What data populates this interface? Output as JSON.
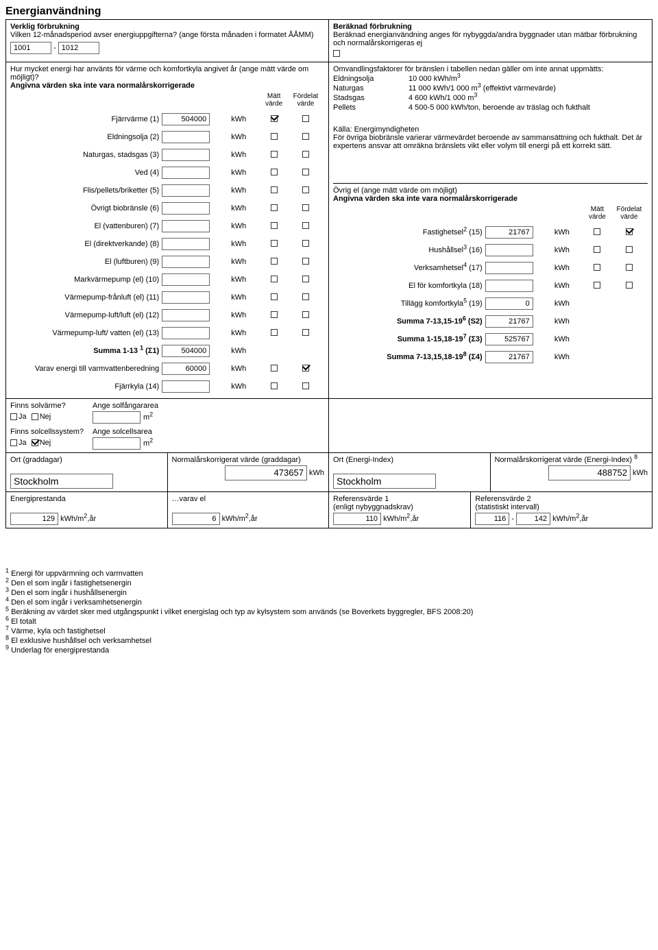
{
  "title": "Energianvändning",
  "top_left": {
    "heading": "Verklig förbrukning",
    "question": "Vilken 12-månadsperiod avser energiuppgifterna? (ange första månaden i formatet ÅÅMM)",
    "period_from": "1001",
    "period_sep": "-",
    "period_to": "1012"
  },
  "top_right": {
    "heading": "Beräknad förbrukning",
    "text": "Beräknad energianvändning anges för nybyggda/andra byggnader utan mätbar förbrukning och normalårskorrigeras ej"
  },
  "usage_q": "Hur mycket energi har använts för värme och komfortkyla angivet år (ange mätt värde om möjligt)?",
  "usage_note": "Angivna värden ska inte vara normalårskorrigerade",
  "col_matt": "Mätt värde",
  "col_fordelat": "Fördelat värde",
  "col_matt_short": "Mätt",
  "col_varde": "värde",
  "col_fordelat_short": "Fördelat",
  "rows_left": [
    {
      "label": "Fjärrvärme (1)",
      "value": "504000",
      "unit": "kWh",
      "matt": true,
      "ford": false
    },
    {
      "label": "Eldningsolja (2)",
      "value": "",
      "unit": "kWh",
      "matt": false,
      "ford": false
    },
    {
      "label": "Naturgas, stadsgas (3)",
      "value": "",
      "unit": "kWh",
      "matt": false,
      "ford": false
    },
    {
      "label": "Ved (4)",
      "value": "",
      "unit": "kWh",
      "matt": false,
      "ford": false
    },
    {
      "label": "Flis/pellets/briketter (5)",
      "value": "",
      "unit": "kWh",
      "matt": false,
      "ford": false
    },
    {
      "label": "Övrigt biobränsle (6)",
      "value": "",
      "unit": "kWh",
      "matt": false,
      "ford": false
    },
    {
      "label": "El (vattenburen) (7)",
      "value": "",
      "unit": "kWh",
      "matt": false,
      "ford": false
    },
    {
      "label": "El (direktverkande) (8)",
      "value": "",
      "unit": "kWh",
      "matt": false,
      "ford": false
    },
    {
      "label": "El (luftburen) (9)",
      "value": "",
      "unit": "kWh",
      "matt": false,
      "ford": false
    },
    {
      "label": "Markvärmepump (el) (10)",
      "value": "",
      "unit": "kWh",
      "matt": false,
      "ford": false
    },
    {
      "label": "Värmepump-frånluft (el) (11)",
      "value": "",
      "unit": "kWh",
      "matt": false,
      "ford": false
    },
    {
      "label": "Värmepump-luft/luft (el) (12)",
      "value": "",
      "unit": "kWh",
      "matt": false,
      "ford": false
    },
    {
      "label": "Värmepump-luft/ vatten (el) (13)",
      "value": "",
      "unit": "kWh",
      "matt": false,
      "ford": false
    }
  ],
  "summa1_label": "Summa 1-13 ",
  "summa1_sup": "1",
  "summa1_sigma": " (Σ1)",
  "summa1_value": "504000",
  "summa1_unit": "kWh",
  "varav_label": "Varav energi till varmvattenberedning",
  "varav_value": "60000",
  "varav_unit": "kWh",
  "varav_matt": false,
  "varav_ford": true,
  "fjarrkyla_label": "Fjärrkyla (14)",
  "fjarrkyla_value": "",
  "fjarrkyla_unit": "kWh",
  "conv_title": "Omvandlingsfaktorer för bränslen i tabellen nedan gäller om inte annat uppmätts:",
  "conv": [
    {
      "k": "Eldningsolja",
      "v": "10 000 kWh/m",
      "sup": "3"
    },
    {
      "k": "Naturgas",
      "v": "11 000 kWh/1 000 m",
      "sup": "3",
      "tail": " (effektivt värmevärde)"
    },
    {
      "k": "Stadsgas",
      "v": "4 600 kWh/1 000 m",
      "sup": "3"
    },
    {
      "k": "Pellets",
      "v": "4 500-5 000 kWh/ton, beroende av träslag och fukthalt"
    }
  ],
  "kalla": "Källa: Energimyndigheten",
  "kalla_text": "För övriga biobränsle varierar värmevärdet beroende av sammansättning och fukthalt. Det är expertens ansvar att omräkna bränslets vikt eller volym till energi på ett korrekt sätt.",
  "ovrig_title": "Övrig el (ange mätt värde om möjligt)",
  "ovrig_note": "Angivna värden ska inte vara normalårskorrigerade",
  "rows_right": [
    {
      "label": "Fastighetsel",
      "sup": "2",
      "tail": " (15)",
      "value": "21767",
      "unit": "kWh",
      "matt": false,
      "ford": true
    },
    {
      "label": "Hushållsel",
      "sup": "3",
      "tail": " (16)",
      "value": "",
      "unit": "kWh",
      "matt": false,
      "ford": false
    },
    {
      "label": "Verksamhetsel",
      "sup": "4",
      "tail": " (17)",
      "value": "",
      "unit": "kWh",
      "matt": false,
      "ford": false
    },
    {
      "label": "El för komfortkyla (18)",
      "value": "",
      "unit": "kWh",
      "matt": false,
      "ford": false
    }
  ],
  "tillagg_label": "Tillägg komfortkyla",
  "tillagg_sup": "5",
  "tillagg_tail": " (19)",
  "tillagg_value": "0",
  "tillagg_unit": "kWh",
  "s2_label": "Summa 7-13,15-19",
  "s2_sup": "6",
  "s2_tail": " (S2)",
  "s2_value": "21767",
  "s2_unit": "kWh",
  "s3_label": "Summa 1-15,18-19",
  "s3_sup": "7",
  "s3_tail": " (Σ3)",
  "s3_value": "525767",
  "s3_unit": "kWh",
  "s4_label": "Summa 7-13,15,18-19",
  "s4_sup": "8",
  "s4_tail": " (Σ4)",
  "s4_value": "21767",
  "s4_unit": "kWh",
  "solv_q": "Finns solvärme?",
  "solv_area_label": "Ange solfångararea",
  "solv_unit": "m",
  "sol_ja": "Ja",
  "sol_nej": "Nej",
  "solv_ja": false,
  "solv_nej": false,
  "solc_q": "Finns solcellssystem?",
  "solc_area_label": "Ange solcellsarea",
  "solc_ja": false,
  "solc_nej": true,
  "ort_grad_label": "Ort (graddagar)",
  "ort_grad_value": "Stockholm",
  "norm_grad_label": "Normalårskorrigerat värde (graddagar)",
  "norm_grad_value": "473657",
  "norm_grad_unit": "kWh",
  "ort_ei_label": "Ort (Energi-Index)",
  "ort_ei_value": "Stockholm",
  "norm_ei_label": "Normalårskorrigerat värde (Energi-Index) ",
  "norm_ei_sup": "8",
  "norm_ei_value": "488752",
  "norm_ei_unit": "kWh",
  "ep_label": "Energiprestanda",
  "ep_value": "129",
  "ep_unit": "kWh/m",
  "ep_sup": "2",
  "ep_tail": ",år",
  "ve_label": "…varav el",
  "ve_value": "6",
  "ve_unit": "kWh/m",
  "ve_sup": "2",
  "ve_tail": ",år",
  "ref1_label": "Referensvärde 1",
  "ref1_sub": "(enligt nybyggnadskrav)",
  "ref1_value": "110",
  "ref1_unit": "kWh/m",
  "ref1_sup": "2",
  "ref1_tail": ",år",
  "ref2_label": "Referensvärde 2",
  "ref2_sub": "(statistiskt intervall)",
  "ref2_from": "116",
  "ref2_sep": "-",
  "ref2_to": "142",
  "ref2_unit": "kWh/m",
  "ref2_sup": "2",
  "ref2_tail": ",år",
  "footnotes": [
    "Energi för uppvärmning och varmvatten",
    "Den el som ingår i fastighetsenergin",
    "Den el som ingår i hushållsenergin",
    "Den el som ingår i verksamhetsenergin",
    "Beräkning av värdet sker med utgångspunkt i vilket energislag och typ av kylsystem som används (se Boverkets byggregler, BFS 2008:20)",
    "El totalt",
    "Värme, kyla och fastighetsel",
    "El exklusive hushållsel och verksamhetsel",
    "Underlag för energiprestanda"
  ],
  "m2": "m",
  "sup2": "2"
}
